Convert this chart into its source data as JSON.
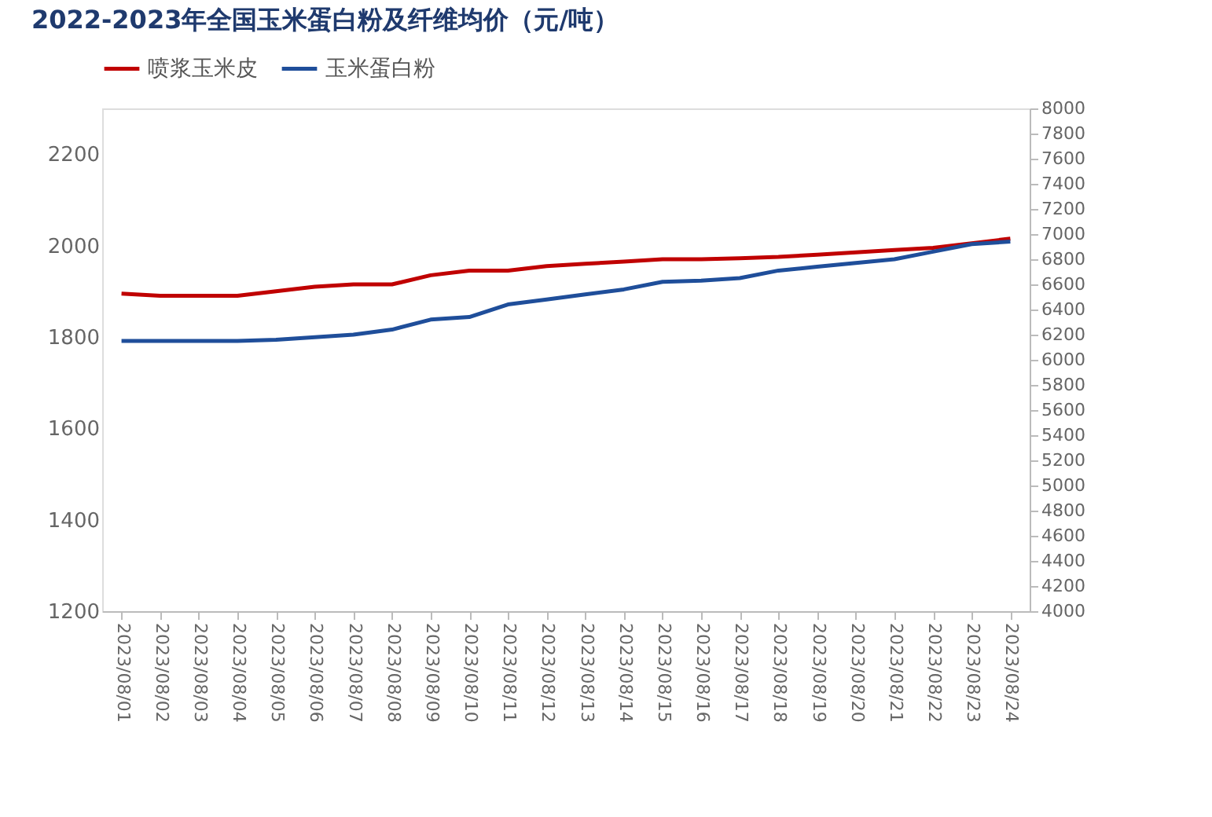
{
  "chart_data": {
    "type": "line",
    "title": "2022-2023年全国玉米蛋白粉及纤维均价（元/吨）",
    "categories": [
      "2023/08/01",
      "2023/08/02",
      "2023/08/03",
      "2023/08/04",
      "2023/08/05",
      "2023/08/06",
      "2023/08/07",
      "2023/08/08",
      "2023/08/09",
      "2023/08/10",
      "2023/08/11",
      "2023/08/12",
      "2023/08/13",
      "2023/08/14",
      "2023/08/15",
      "2023/08/16",
      "2023/08/17",
      "2023/08/18",
      "2023/08/19",
      "2023/08/20",
      "2023/08/21",
      "2023/08/22",
      "2023/08/23",
      "2023/08/24"
    ],
    "series": [
      {
        "name": "喷浆玉米皮",
        "color": "#c00000",
        "values": [
          1895,
          1890,
          1890,
          1890,
          1900,
          1910,
          1915,
          1915,
          1935,
          1945,
          1945,
          1955,
          1960,
          1965,
          1970,
          1970,
          1972,
          1975,
          1980,
          1985,
          1990,
          1995,
          2005,
          2015
        ]
      },
      {
        "name": "玉米蛋白粉",
        "color": "#1f4e9a",
        "axis": "y2",
        "values": [
          6150,
          6150,
          6150,
          6150,
          6160,
          6180,
          6200,
          6240,
          6320,
          6340,
          6440,
          6480,
          6520,
          6560,
          6620,
          6630,
          6650,
          6710,
          6740,
          6770,
          6800,
          6860,
          6920,
          6940
        ]
      }
    ],
    "ylim": [
      1200,
      2300
    ],
    "yticks": [
      1200,
      1400,
      1600,
      1800,
      2000,
      2200
    ],
    "y2lim": [
      4000,
      8000
    ],
    "y2ticks": [
      4000,
      4200,
      4400,
      4600,
      4800,
      5000,
      5200,
      5400,
      5600,
      5800,
      6000,
      6200,
      6400,
      6600,
      6800,
      7000,
      7200,
      7400,
      7600,
      7800,
      8000
    ],
    "legend": "top",
    "grid": false,
    "marker": "none",
    "line_style": "solid"
  }
}
